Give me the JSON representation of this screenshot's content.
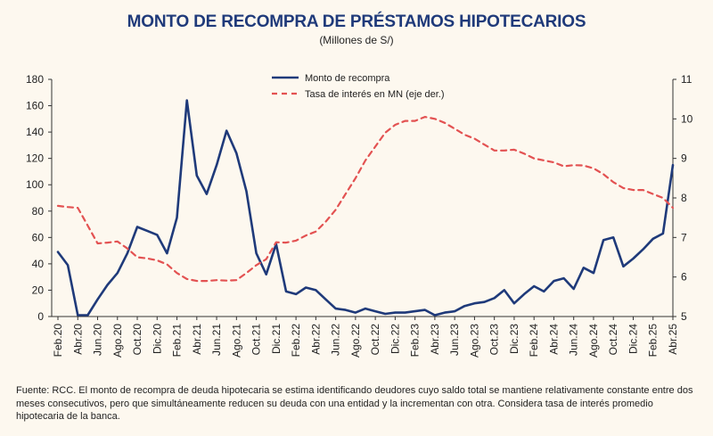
{
  "chart_data": {
    "type": "line",
    "title": "MONTO DE RECOMPRA DE PRÉSTAMOS HIPOTECARIOS",
    "subtitle": "(Millones de S/)",
    "x_tick_labels": [
      "Feb.20",
      "Abr.20",
      "Jun.20",
      "Ago.20",
      "Oct.20",
      "Dic.20",
      "Feb.21",
      "Abr.21",
      "Jun.21",
      "Ago.21",
      "Oct.21",
      "Dic.21",
      "Feb.22",
      "Abr.22",
      "Jun.22",
      "Ago.22",
      "Oct.22",
      "Dic.22",
      "Feb.23",
      "Abr.23",
      "Jun.23",
      "Ago.23",
      "Oct.23",
      "Dic.23",
      "Feb.24",
      "Abr.24",
      "Jun.24",
      "Ago.24",
      "Oct.24",
      "Dic.24",
      "Feb.25",
      "Abr.25"
    ],
    "x": [
      "Feb.20",
      "Mar.20",
      "Abr.20",
      "May.20",
      "Jun.20",
      "Jul.20",
      "Ago.20",
      "Sep.20",
      "Oct.20",
      "Nov.20",
      "Dic.20",
      "Ene.21",
      "Feb.21",
      "Mar.21",
      "Abr.21",
      "May.21",
      "Jun.21",
      "Jul.21",
      "Ago.21",
      "Sep.21",
      "Oct.21",
      "Nov.21",
      "Dic.21",
      "Ene.22",
      "Feb.22",
      "Mar.22",
      "Abr.22",
      "May.22",
      "Jun.22",
      "Jul.22",
      "Ago.22",
      "Sep.22",
      "Oct.22",
      "Nov.22",
      "Dic.22",
      "Ene.23",
      "Feb.23",
      "Mar.23",
      "Abr.23",
      "May.23",
      "Jun.23",
      "Jul.23",
      "Ago.23",
      "Sep.23",
      "Oct.23",
      "Nov.23",
      "Dic.23",
      "Ene.24",
      "Feb.24",
      "Mar.24",
      "Abr.24",
      "May.24",
      "Jun.24",
      "Jul.24",
      "Ago.24",
      "Sep.24",
      "Oct.24",
      "Nov.24",
      "Dic.24",
      "Ene.25",
      "Feb.25",
      "Mar.25",
      "Abr.25"
    ],
    "y_left": {
      "min": 0,
      "max": 180,
      "step": 20
    },
    "y_right": {
      "min": 5,
      "max": 11,
      "step": 1
    },
    "series": [
      {
        "name": "Monto de recompra",
        "axis": "left",
        "color": "#1f3a7a",
        "style": "solid",
        "values": [
          49,
          39,
          1,
          1,
          13,
          24,
          33,
          48,
          68,
          65,
          62,
          48,
          75,
          164,
          107,
          93,
          115,
          141,
          124,
          95,
          48,
          32,
          55,
          19,
          17,
          22,
          20,
          13,
          6,
          5,
          3,
          6,
          4,
          2,
          3,
          3,
          4,
          5,
          1,
          3,
          4,
          8,
          10,
          11,
          14,
          20,
          10,
          17,
          23,
          19,
          27,
          29,
          21,
          37,
          33,
          58,
          60,
          38,
          44,
          51,
          59,
          63,
          115
        ]
      },
      {
        "name": "Tasa de interés en MN (eje der.)",
        "axis": "right",
        "color": "#e35252",
        "style": "dashed",
        "values": [
          7.8,
          7.77,
          7.75,
          7.3,
          6.85,
          6.87,
          6.9,
          6.72,
          6.5,
          6.47,
          6.42,
          6.32,
          6.1,
          5.95,
          5.9,
          5.9,
          5.92,
          5.91,
          5.92,
          6.1,
          6.3,
          6.45,
          6.88,
          6.87,
          6.92,
          7.05,
          7.15,
          7.4,
          7.7,
          8.1,
          8.5,
          8.95,
          9.3,
          9.65,
          9.85,
          9.95,
          9.95,
          10.05,
          10.0,
          9.9,
          9.75,
          9.6,
          9.5,
          9.35,
          9.2,
          9.2,
          9.22,
          9.12,
          9.0,
          8.95,
          8.9,
          8.8,
          8.83,
          8.82,
          8.75,
          8.6,
          8.4,
          8.25,
          8.2,
          8.2,
          8.1,
          8.0,
          7.75
        ]
      }
    ],
    "legend": {
      "position": "top-center"
    }
  },
  "footnote": "Fuente: RCC. El monto de recompra de deuda hipotecaria se estima identificando deudores cuyo saldo total se mantiene relativamente constante entre dos meses consecutivos, pero que simultáneamente reducen su deuda con una entidad y la incrementan con otra. Considera tasa de interés promedio hipotecaria de la banca."
}
